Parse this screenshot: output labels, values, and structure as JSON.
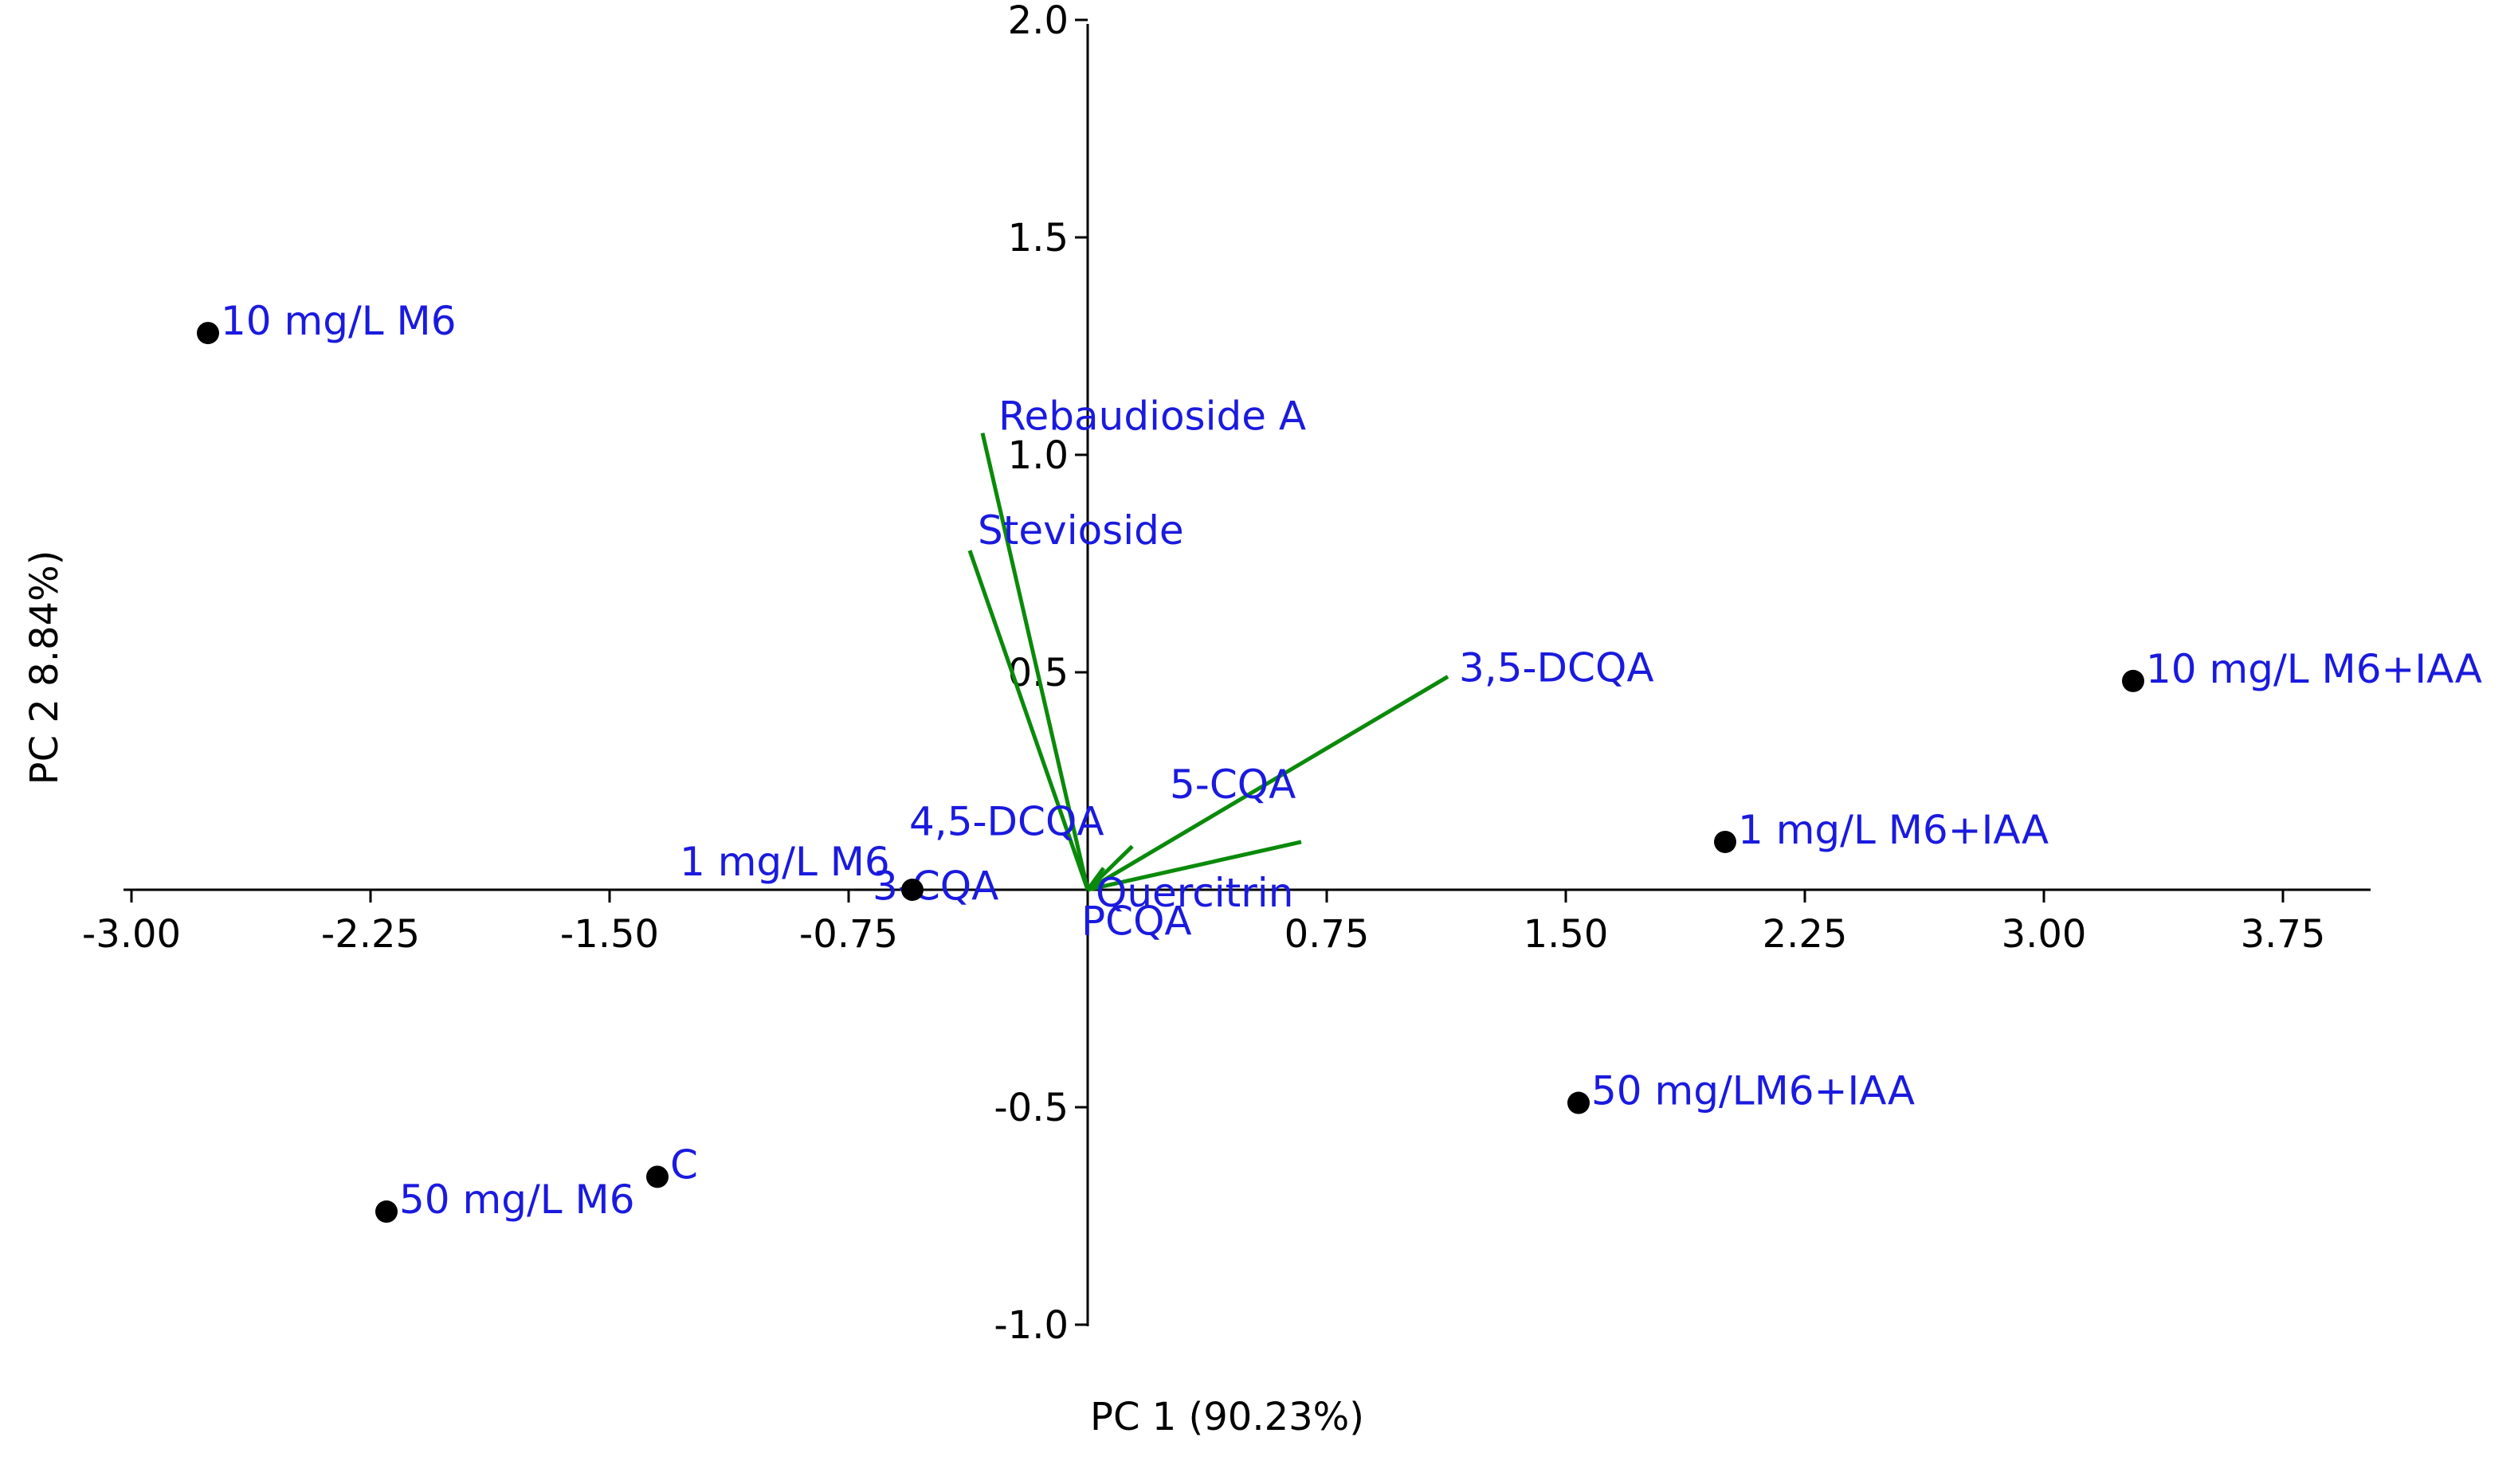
{
  "chart_data": {
    "type": "scatter",
    "subtype": "pca-biplot",
    "title": "",
    "xlabel": "PC 1 (90.23%)",
    "ylabel": "PC 2 8.84%)",
    "xlim": [
      -3.0,
      4.0
    ],
    "ylim": [
      -1.0,
      2.0
    ],
    "x_ticks": [
      "-3.00",
      "-2.25",
      "-1.50",
      "-0.75",
      "0.75",
      "1.50",
      "2.25",
      "3.00",
      "3.75"
    ],
    "x_tick_values": [
      -3.0,
      -2.25,
      -1.5,
      -0.75,
      0.75,
      1.5,
      2.25,
      3.0,
      3.75
    ],
    "y_ticks": [
      "-1.0",
      "-0.5",
      "0.5",
      "1.0",
      "1.5",
      "2.0"
    ],
    "y_tick_values": [
      -1.0,
      -0.5,
      0.5,
      1.0,
      1.5,
      2.0
    ],
    "grid": false,
    "colors": {
      "points": "#000000",
      "labels": "#1a1adf",
      "loadings": "#0a8a0a",
      "axis": "#000000"
    },
    "points": [
      {
        "label": "10 mg/L M6",
        "x": -2.76,
        "y": 1.28
      },
      {
        "label": "1 mg/L M6",
        "x": -0.55,
        "y": 0.0
      },
      {
        "label": "C",
        "x": -1.35,
        "y": -0.66
      },
      {
        "label": "50 mg/L M6",
        "x": -2.2,
        "y": -0.74
      },
      {
        "label": "10 mg/L M6+IAA",
        "x": 3.28,
        "y": 0.48
      },
      {
        "label": "1 mg/L M6+IAA",
        "x": 2.0,
        "y": 0.11
      },
      {
        "label": "50 mg/LM6+IAA",
        "x": 1.54,
        "y": -0.49
      }
    ],
    "loadings": [
      {
        "label": "Rebaudioside A",
        "x": -0.33,
        "y": 1.05
      },
      {
        "label": "Stevioside",
        "x": -0.37,
        "y": 0.78
      },
      {
        "label": "3,5-DCQA",
        "x": 1.13,
        "y": 0.49
      },
      {
        "label": "5-CQA",
        "x": 0.67,
        "y": 0.11
      },
      {
        "label": "4,5-DCQA",
        "x": 0.14,
        "y": 0.1
      },
      {
        "label": "3-CQA",
        "x": 0.05,
        "y": 0.05
      },
      {
        "label": "Quercitrin",
        "x": 0.05,
        "y": 0.02
      },
      {
        "label": "PCQA",
        "x": 0.03,
        "y": 0.01
      }
    ]
  }
}
